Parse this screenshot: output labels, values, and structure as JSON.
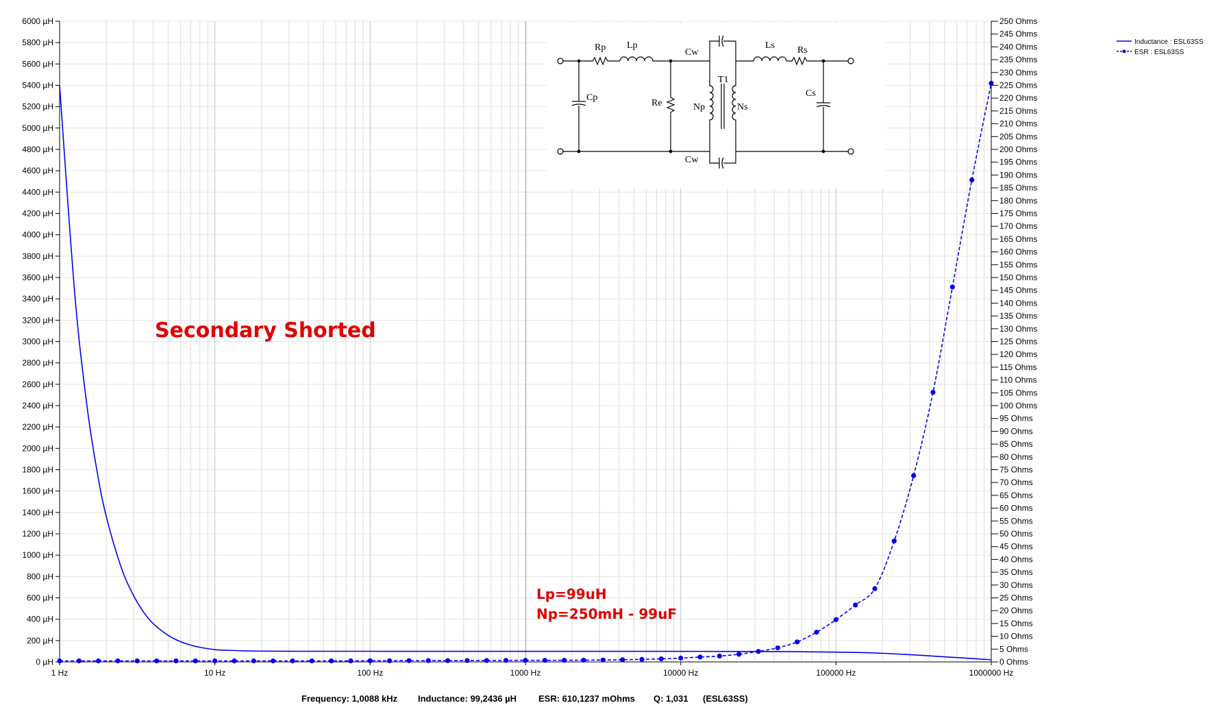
{
  "chart_data": {
    "type": "line",
    "x_scale": "log",
    "xlim": [
      1,
      1000000
    ],
    "x_ticks": [
      {
        "value": 1,
        "label": "1 Hz"
      },
      {
        "value": 10,
        "label": "10 Hz"
      },
      {
        "value": 100,
        "label": "100 Hz"
      },
      {
        "value": 1000,
        "label": "1000 Hz"
      },
      {
        "value": 10000,
        "label": "10000 Hz"
      },
      {
        "value": 100000,
        "label": "100000 Hz"
      },
      {
        "value": 1000000,
        "label": "1000000 Hz"
      }
    ],
    "y_left": {
      "ylim": [
        0,
        6000
      ],
      "tick_step": 200,
      "tick_labels": [
        "0 µH",
        "200 µH",
        "400 µH",
        "600 µH",
        "800 µH",
        "1000 µH",
        "1200 µH",
        "1400 µH",
        "1600 µH",
        "1800 µH",
        "2000 µH",
        "2200 µH",
        "2400 µH",
        "2600 µH",
        "2800 µH",
        "3000 µH",
        "3200 µH",
        "3400 µH",
        "3600 µH",
        "3800 µH",
        "4000 µH",
        "4200 µH",
        "4400 µH",
        "4600 µH",
        "4800 µH",
        "5000 µH",
        "5200 µH",
        "5400 µH",
        "5600 µH",
        "5800 µH",
        "6000 µH"
      ]
    },
    "y_right": {
      "ylim": [
        0,
        250
      ],
      "tick_step": 5,
      "tick_labels": [
        "0 Ohms",
        "5 Ohms",
        "10 Ohms",
        "15 Ohms",
        "20 Ohms",
        "25 Ohms",
        "30 Ohms",
        "35 Ohms",
        "40 Ohms",
        "45 Ohms",
        "50 Ohms",
        "55 Ohms",
        "60 Ohms",
        "65 Ohms",
        "70 Ohms",
        "75 Ohms",
        "80 Ohms",
        "85 Ohms",
        "90 Ohms",
        "95 Ohms",
        "100 Ohms",
        "105 Ohms",
        "110 Ohms",
        "115 Ohms",
        "120 Ohms",
        "125 Ohms",
        "130 Ohms",
        "135 Ohms",
        "140 Ohms",
        "145 Ohms",
        "150 Ohms",
        "155 Ohms",
        "160 Ohms",
        "165 Ohms",
        "170 Ohms",
        "175 Ohms",
        "180 Ohms",
        "185 Ohms",
        "190 Ohms",
        "195 Ohms",
        "200 Ohms",
        "205 Ohms",
        "210 Ohms",
        "215 Ohms",
        "220 Ohms",
        "225 Ohms",
        "230 Ohms",
        "235 Ohms",
        "240 Ohms",
        "245 Ohms",
        "250 Ohms"
      ]
    },
    "grid": true,
    "legend_position": "top-right",
    "cursor_x": 1008.8,
    "series": [
      {
        "name": "Inductance : ESL63SS",
        "axis": "left",
        "color": "#0000ee",
        "style": "solid",
        "x": [
          1,
          1.25,
          1.5,
          1.75,
          2,
          2.5,
          3,
          3.5,
          4,
          5,
          6,
          7,
          8,
          10,
          12,
          15,
          20,
          30,
          50,
          100,
          200,
          500,
          1000,
          2000,
          5000,
          10000,
          20000,
          50000,
          100000,
          150000,
          200000,
          300000,
          500000,
          700000,
          1000000
        ],
        "values": [
          5400,
          3460,
          2400,
          1770,
          1360,
          880,
          620,
          460,
          360,
          249,
          190,
          157,
          137,
          115,
          109,
          104,
          101,
          100,
          99.5,
          99.4,
          99.3,
          99.25,
          99.24,
          99.2,
          99.1,
          98.8,
          98.3,
          96.5,
          92,
          87,
          81,
          68,
          48,
          35,
          20
        ]
      },
      {
        "name": "ESR : ESL63SS",
        "axis": "right",
        "color": "#0000ee",
        "style": "dashed",
        "markers": true,
        "x": [
          1,
          1.334,
          1.778,
          2.371,
          3.162,
          4.217,
          5.623,
          7.499,
          10,
          13.34,
          17.78,
          23.71,
          31.62,
          42.17,
          56.23,
          74.99,
          100,
          133.4,
          177.8,
          237.1,
          316.2,
          421.7,
          562.3,
          749.9,
          1000,
          1334,
          1778,
          2371,
          3162,
          4217,
          5623,
          7499,
          10000,
          13335,
          17783,
          23714,
          31623,
          42170,
          56234,
          74989,
          100000,
          133352,
          177828,
          237137,
          316228,
          421697,
          562341,
          749894,
          1000000
        ],
        "values": [
          0.4,
          0.4,
          0.4,
          0.4,
          0.4,
          0.4,
          0.4,
          0.4,
          0.4,
          0.4,
          0.4,
          0.4,
          0.4,
          0.4,
          0.4,
          0.4,
          0.45,
          0.45,
          0.5,
          0.5,
          0.5,
          0.55,
          0.55,
          0.6,
          0.61,
          0.62,
          0.65,
          0.68,
          0.75,
          0.85,
          1.0,
          1.2,
          1.5,
          1.9,
          2.3,
          3.0,
          4.1,
          5.5,
          7.8,
          11.6,
          16.5,
          22.2,
          28.6,
          47.2,
          72.7,
          105.2,
          146.3,
          188.1,
          225.8
        ]
      }
    ]
  },
  "legend": [
    {
      "label": "Inductance : ESL63SS",
      "style": "solid"
    },
    {
      "label": "ESR : ESL63SS",
      "style": "dashed-marker"
    }
  ],
  "annotations": {
    "title": "Secondary Shorted",
    "note_line1": "Lp=99uH",
    "note_line2": "Np=250mH - 99uF"
  },
  "circuit": {
    "labels": [
      "Rp",
      "Lp",
      "Cw",
      "Ls",
      "Rs",
      "Cp",
      "Re",
      "T1",
      "Np",
      "Ns",
      "Cs",
      "Cw"
    ]
  },
  "status_bar": {
    "frequency": "Frequency: 1,0088 kHz",
    "inductance": "Inductance: 99,2436 µH",
    "esr": "ESR: 610,1237 mOhms",
    "q": "Q: 1,031",
    "device": "(ESL63SS)"
  }
}
